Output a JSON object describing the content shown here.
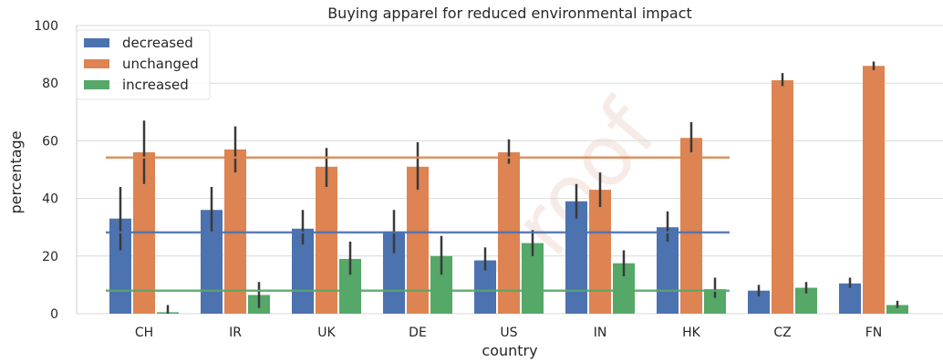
{
  "watermark": "proof",
  "chart_data": {
    "type": "bar",
    "title": "Buying apparel for reduced environmental impact",
    "xlabel": "country",
    "ylabel": "percentage",
    "ylim": [
      0,
      100
    ],
    "yticks": [
      0,
      20,
      40,
      60,
      80,
      100
    ],
    "grid": "horizontal",
    "legend_position": "top-left",
    "categories": [
      "CH",
      "IR",
      "UK",
      "DE",
      "US",
      "IN",
      "HK",
      "CZ",
      "FN"
    ],
    "series": [
      {
        "name": "decreased",
        "color": "#4c72b0",
        "values": [
          33,
          36,
          29.5,
          28.5,
          18.5,
          39,
          30,
          8,
          10.5
        ],
        "ci_low": [
          22,
          28,
          24,
          21,
          15,
          33,
          25,
          6,
          9
        ],
        "ci_high": [
          44,
          44,
          36,
          36,
          23,
          45,
          35.5,
          10,
          12.5
        ]
      },
      {
        "name": "unchanged",
        "color": "#dd8452",
        "values": [
          56,
          57,
          51,
          51,
          56,
          43,
          61,
          81,
          86
        ],
        "ci_low": [
          45,
          49,
          44,
          43,
          52,
          37,
          56,
          79,
          84.5
        ],
        "ci_high": [
          67,
          65,
          57.5,
          59.5,
          60.5,
          49,
          66.5,
          83.5,
          87.5
        ]
      },
      {
        "name": "increased",
        "color": "#55a868",
        "values": [
          0.5,
          6.5,
          19,
          20,
          24.5,
          17.5,
          8.5,
          9,
          3
        ],
        "ci_low": [
          0,
          2,
          13.5,
          13.5,
          20,
          13,
          5.5,
          7,
          2
        ],
        "ci_high": [
          3,
          11,
          25,
          27,
          29,
          22,
          12.5,
          11,
          4.5
        ]
      }
    ],
    "reference_lines": [
      {
        "series": "decreased",
        "value": 28.2,
        "color": "#4c72b0",
        "from_category": "CH",
        "to_category": "HK"
      },
      {
        "series": "unchanged",
        "value": 54.2,
        "color": "#dd8452",
        "from_category": "CH",
        "to_category": "HK"
      },
      {
        "series": "increased",
        "value": 8.0,
        "color": "#55a868",
        "from_category": "CH",
        "to_category": "HK"
      }
    ]
  }
}
